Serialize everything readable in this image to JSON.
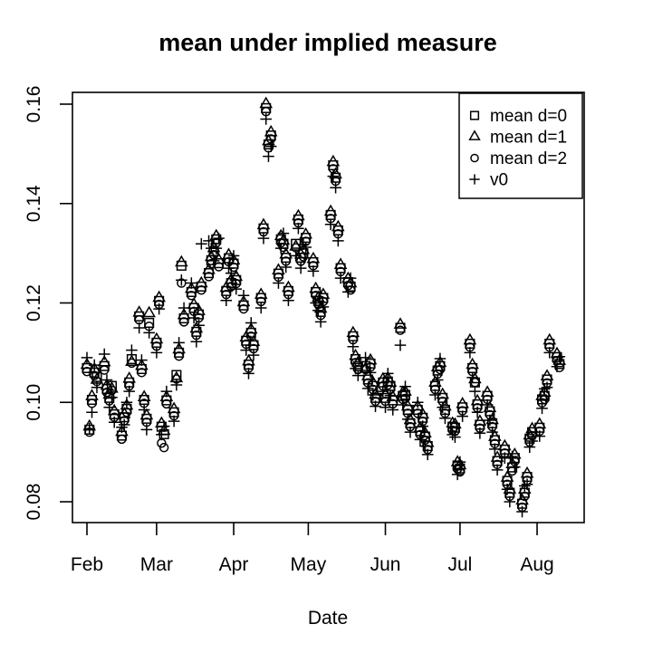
{
  "chart_data": {
    "type": "scatter",
    "title": "mean under implied measure",
    "xlabel": "Date",
    "ylabel": "",
    "background": "#FFFFFF",
    "marker_color": "#000000",
    "grid": false,
    "x_axis": {
      "tick_labels": [
        "Feb",
        "Mar",
        "Apr",
        "May",
        "Jun",
        "Jul",
        "Aug"
      ],
      "tick_days_from_feb1": [
        0,
        28,
        59,
        89,
        120,
        150,
        181
      ]
    },
    "y_axis": {
      "tick_values": [
        0.08,
        0.1,
        0.12,
        0.14,
        0.16
      ],
      "tick_labels": [
        "0.08",
        "0.10",
        "0.12",
        "0.14",
        "0.16"
      ],
      "range_approx": [
        0.076,
        0.1635
      ]
    },
    "legend": {
      "position": "topright",
      "entries": [
        {
          "label": "mean d=0",
          "marker": "square"
        },
        {
          "label": "mean d=1",
          "marker": "triangle"
        },
        {
          "label": "mean d=2",
          "marker": "circle"
        },
        {
          "label": "v0",
          "marker": "plus"
        }
      ]
    },
    "series_keys": [
      "mean_d0",
      "mean_d1",
      "mean_d2",
      "v0"
    ],
    "points_format": [
      "day_from_feb1",
      "mean_d0",
      "mean_d1",
      "mean_d2",
      "v0"
    ],
    "points": [
      [
        0,
        0.1069,
        0.1075,
        0.1062,
        0.109
      ],
      [
        1,
        0.0945,
        0.0951,
        0.094,
        0.0947
      ],
      [
        2,
        0.1005,
        0.1012,
        0.0998,
        0.098
      ],
      [
        3,
        0.106,
        0.1066,
        0.1054,
        0.1075
      ],
      [
        4,
        0.1051,
        0.1045,
        0.1042,
        0.103
      ],
      [
        7,
        0.1073,
        0.108,
        0.1065,
        0.1097
      ],
      [
        8,
        0.1027,
        0.1033,
        0.102,
        0.1045
      ],
      [
        9,
        0.1009,
        0.1015,
        0.1003,
        0.099
      ],
      [
        10,
        0.1033,
        0.1027,
        0.1024,
        0.101
      ],
      [
        11,
        0.0976,
        0.0982,
        0.097,
        0.096
      ],
      [
        14,
        0.0933,
        0.094,
        0.0926,
        0.095
      ],
      [
        15,
        0.097,
        0.0976,
        0.0963,
        0.0955
      ],
      [
        16,
        0.0987,
        0.0993,
        0.098,
        0.1
      ],
      [
        17,
        0.104,
        0.1047,
        0.1033,
        0.1022
      ],
      [
        18,
        0.1087,
        0.1081,
        0.1079,
        0.1105
      ],
      [
        21,
        0.1173,
        0.118,
        0.1166,
        0.115
      ],
      [
        22,
        0.1067,
        0.1073,
        0.106,
        0.1085
      ],
      [
        23,
        0.1005,
        0.101,
        0.0998,
        0.0985
      ],
      [
        24,
        0.0967,
        0.0973,
        0.096,
        0.0945
      ],
      [
        25,
        0.116,
        0.1179,
        0.1153,
        0.114
      ],
      [
        28,
        0.112,
        0.1126,
        0.1113,
        0.11
      ],
      [
        29,
        0.1204,
        0.121,
        0.1197,
        0.1188
      ],
      [
        30,
        0.0951,
        0.0957,
        0.0918,
        0.0935
      ],
      [
        31,
        0.0936,
        0.0942,
        0.0909,
        0.0952
      ],
      [
        32,
        0.1004,
        0.101,
        0.0997,
        0.1022
      ],
      [
        35,
        0.098,
        0.0986,
        0.0973,
        0.0962
      ],
      [
        36,
        0.1055,
        0.1048,
        0.1047,
        0.1035
      ],
      [
        37,
        0.11,
        0.1106,
        0.1093,
        0.112
      ],
      [
        38,
        0.1275,
        0.1281,
        0.124,
        0.1246
      ],
      [
        39,
        0.1169,
        0.1175,
        0.1162,
        0.119
      ],
      [
        42,
        0.1222,
        0.1228,
        0.1215,
        0.124
      ],
      [
        43,
        0.119,
        0.1196,
        0.1183,
        0.117
      ],
      [
        44,
        0.1142,
        0.1148,
        0.1135,
        0.1122
      ],
      [
        45,
        0.1177,
        0.1183,
        0.117,
        0.1155
      ],
      [
        46,
        0.1233,
        0.1239,
        0.1226,
        0.1319
      ],
      [
        49,
        0.126,
        0.1266,
        0.1253,
        0.1325
      ],
      [
        50,
        0.1286,
        0.1292,
        0.1279,
        0.131
      ],
      [
        51,
        0.1304,
        0.131,
        0.1297,
        0.1285
      ],
      [
        52,
        0.1328,
        0.1334,
        0.1321,
        0.131
      ],
      [
        53,
        0.128,
        0.1286,
        0.1273,
        0.133
      ],
      [
        56,
        0.1224,
        0.123,
        0.1217,
        0.1205
      ],
      [
        57,
        0.129,
        0.1296,
        0.1283,
        0.127
      ],
      [
        58,
        0.124,
        0.1246,
        0.1233,
        0.126
      ],
      [
        59,
        0.1279,
        0.1285,
        0.1272,
        0.1295
      ],
      [
        60,
        0.1246,
        0.1252,
        0.1239,
        0.1228
      ],
      [
        63,
        0.1195,
        0.1201,
        0.1188,
        0.1215
      ],
      [
        64,
        0.1124,
        0.113,
        0.1117,
        0.1105
      ],
      [
        65,
        0.1076,
        0.1082,
        0.1069,
        0.1058
      ],
      [
        66,
        0.114,
        0.1146,
        0.1133,
        0.116
      ],
      [
        67,
        0.1115,
        0.1121,
        0.1108,
        0.1095
      ],
      [
        70,
        0.121,
        0.1216,
        0.1203,
        0.119
      ],
      [
        71,
        0.135,
        0.1356,
        0.1343,
        0.133
      ],
      [
        72,
        0.1592,
        0.16,
        0.1585,
        0.157
      ],
      [
        73,
        0.1519,
        0.1525,
        0.1512,
        0.1495
      ],
      [
        74,
        0.1537,
        0.1543,
        0.153,
        0.1515
      ],
      [
        77,
        0.1259,
        0.1265,
        0.1252,
        0.124
      ],
      [
        78,
        0.1328,
        0.1334,
        0.1321,
        0.131
      ],
      [
        79,
        0.1319,
        0.1325,
        0.1312,
        0.134
      ],
      [
        80,
        0.1291,
        0.1297,
        0.1284,
        0.1272
      ],
      [
        81,
        0.1224,
        0.123,
        0.1217,
        0.1205
      ],
      [
        84,
        0.1319,
        0.1313,
        0.1311,
        0.1295
      ],
      [
        85,
        0.1368,
        0.1374,
        0.1361,
        0.135
      ],
      [
        86,
        0.1291,
        0.1297,
        0.1284,
        0.127
      ],
      [
        87,
        0.13,
        0.1306,
        0.1293,
        0.1318
      ],
      [
        88,
        0.1331,
        0.1337,
        0.1324,
        0.1312
      ],
      [
        91,
        0.1282,
        0.1288,
        0.1275,
        0.1264
      ],
      [
        92,
        0.1222,
        0.1228,
        0.1215,
        0.12
      ],
      [
        93,
        0.1204,
        0.121,
        0.1197,
        0.1185
      ],
      [
        94,
        0.1182,
        0.1188,
        0.1175,
        0.1162
      ],
      [
        95,
        0.121,
        0.1216,
        0.1203,
        0.1192
      ],
      [
        98,
        0.1377,
        0.1383,
        0.137,
        0.1358
      ],
      [
        99,
        0.1477,
        0.1483,
        0.147,
        0.1455
      ],
      [
        100,
        0.1452,
        0.1458,
        0.1445,
        0.1432
      ],
      [
        101,
        0.1346,
        0.1352,
        0.1339,
        0.1325
      ],
      [
        102,
        0.127,
        0.1276,
        0.1263,
        0.125
      ],
      [
        105,
        0.1242,
        0.1248,
        0.1235,
        0.1222
      ],
      [
        106,
        0.1233,
        0.1239,
        0.1226,
        0.125
      ],
      [
        107,
        0.1133,
        0.1139,
        0.1126,
        0.1112
      ],
      [
        108,
        0.1087,
        0.1093,
        0.108,
        0.1068
      ],
      [
        109,
        0.1073,
        0.1079,
        0.1066,
        0.1054
      ],
      [
        112,
        0.1073,
        0.1067,
        0.1066,
        0.109
      ],
      [
        113,
        0.1046,
        0.1052,
        0.1039,
        0.1028
      ],
      [
        114,
        0.1078,
        0.1084,
        0.1071,
        0.106
      ],
      [
        115,
        0.1033,
        0.1039,
        0.1026,
        0.1015
      ],
      [
        116,
        0.1009,
        0.1015,
        0.1002,
        0.0992
      ],
      [
        119,
        0.104,
        0.1046,
        0.1033,
        0.1022
      ],
      [
        120,
        0.1009,
        0.1015,
        0.1002,
        0.099
      ],
      [
        121,
        0.1042,
        0.1048,
        0.1035,
        0.1058
      ],
      [
        122,
        0.1033,
        0.1039,
        0.1026,
        0.1014
      ],
      [
        123,
        0.1004,
        0.101,
        0.0997,
        0.0985
      ],
      [
        126,
        0.115,
        0.1156,
        0.1145,
        0.1115
      ],
      [
        127,
        0.1013,
        0.1019,
        0.1006,
        0.0995
      ],
      [
        128,
        0.1015,
        0.1021,
        0.1008,
        0.1032
      ],
      [
        129,
        0.0985,
        0.0991,
        0.0978,
        0.0966
      ],
      [
        130,
        0.0958,
        0.0964,
        0.0951,
        0.094
      ],
      [
        133,
        0.0985,
        0.0991,
        0.0978,
        0.1
      ],
      [
        134,
        0.0942,
        0.0948,
        0.0935,
        0.0925
      ],
      [
        135,
        0.0969,
        0.0975,
        0.0962,
        0.0952
      ],
      [
        136,
        0.0931,
        0.0937,
        0.0924,
        0.0912
      ],
      [
        137,
        0.0912,
        0.0918,
        0.0905,
        0.0895
      ],
      [
        140,
        0.1033,
        0.1039,
        0.1026,
        0.1015
      ],
      [
        141,
        0.1064,
        0.107,
        0.1057,
        0.1045
      ],
      [
        142,
        0.1073,
        0.1079,
        0.1066,
        0.1088
      ],
      [
        143,
        0.1009,
        0.1015,
        0.1002,
        0.099
      ],
      [
        144,
        0.0985,
        0.0991,
        0.0978,
        0.0968
      ],
      [
        147,
        0.0951,
        0.0957,
        0.0944,
        0.0935
      ],
      [
        148,
        0.0949,
        0.0955,
        0.0942,
        0.093
      ],
      [
        149,
        0.0873,
        0.0879,
        0.0866,
        0.0855
      ],
      [
        150,
        0.0867,
        0.0873,
        0.086,
        0.088
      ],
      [
        151,
        0.099,
        0.0996,
        0.0983,
        0.0972
      ],
      [
        154,
        0.1118,
        0.1124,
        0.1111,
        0.11
      ],
      [
        155,
        0.1069,
        0.1075,
        0.1062,
        0.105
      ],
      [
        156,
        0.104,
        0.1046,
        0.104,
        0.1022
      ],
      [
        157,
        0.0996,
        0.1002,
        0.0989,
        0.098
      ],
      [
        158,
        0.0955,
        0.0961,
        0.0948,
        0.0938
      ],
      [
        161,
        0.1013,
        0.1019,
        0.1006,
        0.0995
      ],
      [
        162,
        0.0982,
        0.0988,
        0.0975,
        0.0964
      ],
      [
        163,
        0.0958,
        0.0964,
        0.0951,
        0.094
      ],
      [
        164,
        0.0924,
        0.093,
        0.0917,
        0.0906
      ],
      [
        165,
        0.0882,
        0.0888,
        0.0875,
        0.0864
      ],
      [
        168,
        0.0905,
        0.0911,
        0.0898,
        0.0888
      ],
      [
        169,
        0.0842,
        0.0848,
        0.0835,
        0.0825
      ],
      [
        170,
        0.0818,
        0.0824,
        0.0811,
        0.08
      ],
      [
        171,
        0.0869,
        0.0875,
        0.0862,
        0.0891
      ],
      [
        172,
        0.0888,
        0.0894,
        0.0881,
        0.087
      ],
      [
        175,
        0.0796,
        0.0802,
        0.0789,
        0.078
      ],
      [
        176,
        0.0818,
        0.0824,
        0.0811,
        0.0832
      ],
      [
        177,
        0.085,
        0.0856,
        0.0843,
        0.0835
      ],
      [
        178,
        0.0927,
        0.0933,
        0.092,
        0.091
      ],
      [
        179,
        0.094,
        0.0946,
        0.0933,
        0.0922
      ],
      [
        182,
        0.0949,
        0.0955,
        0.0942,
        0.0932
      ],
      [
        183,
        0.1006,
        0.1012,
        0.0999,
        0.0988
      ],
      [
        184,
        0.1013,
        0.1019,
        0.1006,
        0.1027
      ],
      [
        185,
        0.1046,
        0.1052,
        0.1039,
        0.103
      ],
      [
        186,
        0.1118,
        0.1124,
        0.1111,
        0.11
      ],
      [
        189,
        0.1091,
        0.1097,
        0.1084,
        0.1072
      ],
      [
        190,
        0.1077,
        0.1083,
        0.107,
        0.1092
      ]
    ]
  }
}
